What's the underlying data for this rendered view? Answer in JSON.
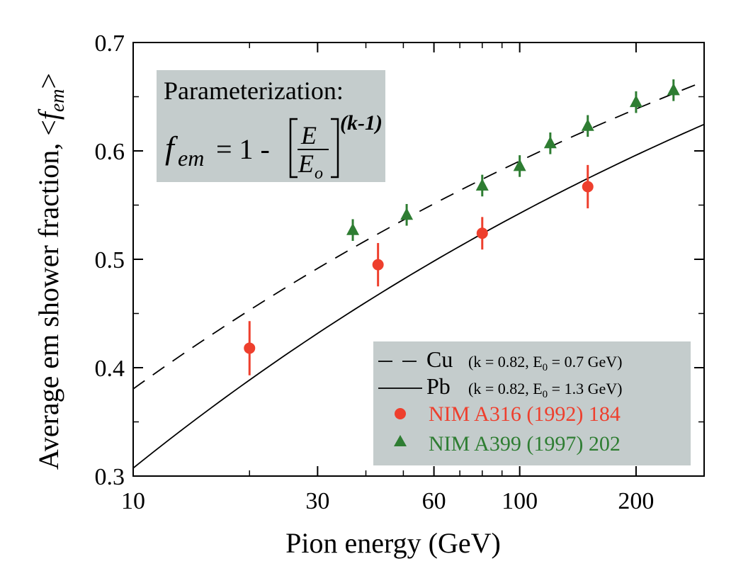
{
  "chart_data": {
    "type": "scatter",
    "title": "",
    "xlabel": "Pion energy (GeV)",
    "ylabel_main": "Average em shower fraction, <",
    "ylabel_sym": "f",
    "ylabel_sub": "em",
    "ylabel_end": ">",
    "x_scale": "log",
    "xlim": [
      10,
      300
    ],
    "ylim": [
      0.3,
      0.7
    ],
    "x_ticks": [
      10,
      30,
      60,
      100,
      200
    ],
    "x_tick_labels": [
      "10",
      "30",
      "60",
      "100",
      "200"
    ],
    "y_ticks": [
      0.3,
      0.4,
      0.5,
      0.6,
      0.7
    ],
    "y_tick_labels": [
      "0.3",
      "0.4",
      "0.5",
      "0.6",
      "0.7"
    ],
    "parameterization": {
      "title": "Parameterization:",
      "lhs_f": "f",
      "lhs_sub": "em",
      "equals": "= 1 -",
      "num": "E",
      "den": "E",
      "den_sub": "o",
      "exponent": "(k-1)"
    },
    "curves": [
      {
        "name": "Cu",
        "params": "(k = 0.82, E",
        "params_sub": "0",
        "params_end": " = 0.7 GeV)",
        "k": 0.82,
        "E0": 0.7,
        "style": "dashed",
        "color": "#000000"
      },
      {
        "name": "Pb",
        "params": "(k = 0.82, E",
        "params_sub": "0",
        "params_end": " = 1.3 GeV)",
        "k": 0.82,
        "E0": 1.3,
        "style": "solid",
        "color": "#000000"
      }
    ],
    "series": [
      {
        "name": "NIM A316 (1992) 184",
        "marker": "circle",
        "color": "#ee3f2d",
        "points": [
          {
            "x": 20,
            "y": 0.418,
            "err": 0.025
          },
          {
            "x": 43,
            "y": 0.495,
            "err": 0.02
          },
          {
            "x": 80,
            "y": 0.524,
            "err": 0.015
          },
          {
            "x": 150,
            "y": 0.567,
            "err": 0.02
          }
        ]
      },
      {
        "name": "NIM A399 (1997) 202",
        "marker": "triangle",
        "color": "#2e7d32",
        "points": [
          {
            "x": 37,
            "y": 0.527,
            "err": 0.01
          },
          {
            "x": 51,
            "y": 0.541,
            "err": 0.01
          },
          {
            "x": 80,
            "y": 0.568,
            "err": 0.01
          },
          {
            "x": 100,
            "y": 0.586,
            "err": 0.01
          },
          {
            "x": 120,
            "y": 0.607,
            "err": 0.01
          },
          {
            "x": 150,
            "y": 0.623,
            "err": 0.01
          },
          {
            "x": 200,
            "y": 0.645,
            "err": 0.01
          },
          {
            "x": 250,
            "y": 0.656,
            "err": 0.01
          }
        ]
      }
    ],
    "legend_position": "bottom-right",
    "grid": false
  }
}
